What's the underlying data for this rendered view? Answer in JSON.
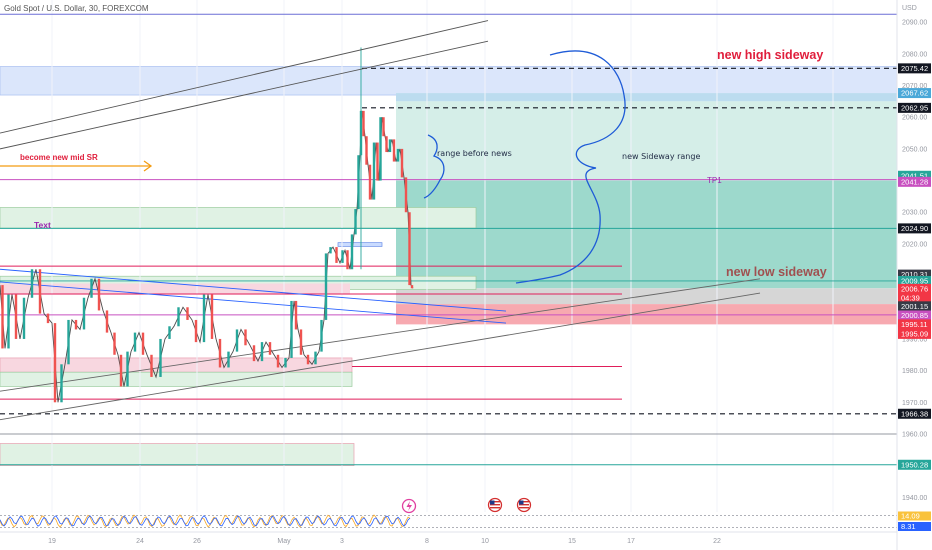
{
  "chart_title": "Gold Spot / U.S. Dollar, 30, FOREXCOM",
  "currency": "USD",
  "chart_data": {
    "type": "line",
    "title": "Gold Spot / U.S. Dollar, 30, FOREXCOM",
    "xlabel": "",
    "ylabel": "",
    "ylim": [
      1936,
      2097
    ],
    "x_tick_labels": [
      "19",
      "24",
      "26",
      "May",
      "3",
      "8",
      "10",
      "15",
      "17",
      "22"
    ],
    "y_ticks": [
      1940,
      1950,
      1960,
      1970,
      1980,
      1990,
      2000,
      2010,
      2020,
      2030,
      2040,
      2050,
      2060,
      2070,
      2080,
      2090
    ],
    "y_tick_labels": [
      "1940.00",
      "1950.00",
      "1960.00",
      "1970.00",
      "1980.00",
      "1990.00",
      "2000.00",
      "2010.00",
      "2020.00",
      "2030.00",
      "2040.00",
      "2050.00",
      "2060.00",
      "2070.00",
      "2080.00",
      "2090.00"
    ],
    "price_series": [
      {
        "x": 0,
        "y": 2007
      },
      {
        "x": 5,
        "y": 1987
      },
      {
        "x": 12,
        "y": 2004
      },
      {
        "x": 20,
        "y": 1990
      },
      {
        "x": 28,
        "y": 2003
      },
      {
        "x": 36,
        "y": 2012
      },
      {
        "x": 44,
        "y": 1998
      },
      {
        "x": 52,
        "y": 1995
      },
      {
        "x": 58,
        "y": 1970
      },
      {
        "x": 65,
        "y": 1982
      },
      {
        "x": 72,
        "y": 1996
      },
      {
        "x": 80,
        "y": 1993
      },
      {
        "x": 88,
        "y": 2003
      },
      {
        "x": 95,
        "y": 2009
      },
      {
        "x": 103,
        "y": 1999
      },
      {
        "x": 111,
        "y": 1992
      },
      {
        "x": 118,
        "y": 1985
      },
      {
        "x": 124,
        "y": 1975
      },
      {
        "x": 131,
        "y": 1986
      },
      {
        "x": 139,
        "y": 1992
      },
      {
        "x": 147,
        "y": 1985
      },
      {
        "x": 156,
        "y": 1978
      },
      {
        "x": 165,
        "y": 1990
      },
      {
        "x": 174,
        "y": 1994
      },
      {
        "x": 183,
        "y": 2000
      },
      {
        "x": 192,
        "y": 1996
      },
      {
        "x": 200,
        "y": 1989
      },
      {
        "x": 208,
        "y": 2004
      },
      {
        "x": 216,
        "y": 1990
      },
      {
        "x": 224,
        "y": 1981
      },
      {
        "x": 233,
        "y": 1986
      },
      {
        "x": 241,
        "y": 1993
      },
      {
        "x": 250,
        "y": 1988
      },
      {
        "x": 258,
        "y": 1983
      },
      {
        "x": 266,
        "y": 1989
      },
      {
        "x": 274,
        "y": 1985
      },
      {
        "x": 282,
        "y": 1981
      },
      {
        "x": 289,
        "y": 1984
      },
      {
        "x": 294,
        "y": 2002
      },
      {
        "x": 298,
        "y": 1993
      },
      {
        "x": 304,
        "y": 1985
      },
      {
        "x": 312,
        "y": 1982
      },
      {
        "x": 319,
        "y": 1986
      },
      {
        "x": 324,
        "y": 1996
      },
      {
        "x": 328,
        "y": 2017
      },
      {
        "x": 333,
        "y": 2019
      },
      {
        "x": 340,
        "y": 2014
      },
      {
        "x": 345,
        "y": 2018
      },
      {
        "x": 350,
        "y": 2012
      },
      {
        "x": 354,
        "y": 2023
      },
      {
        "x": 357,
        "y": 2031
      },
      {
        "x": 360,
        "y": 2048
      },
      {
        "x": 362,
        "y": 2062
      },
      {
        "x": 365,
        "y": 2054
      },
      {
        "x": 368,
        "y": 2045
      },
      {
        "x": 372,
        "y": 2034
      },
      {
        "x": 376,
        "y": 2052
      },
      {
        "x": 379,
        "y": 2040
      },
      {
        "x": 382,
        "y": 2060
      },
      {
        "x": 385,
        "y": 2054
      },
      {
        "x": 388,
        "y": 2049
      },
      {
        "x": 392,
        "y": 2053
      },
      {
        "x": 396,
        "y": 2046
      },
      {
        "x": 400,
        "y": 2050
      },
      {
        "x": 404,
        "y": 2041
      },
      {
        "x": 408,
        "y": 2030
      },
      {
        "x": 411,
        "y": 2007
      },
      {
        "x": 413,
        "y": 2006
      }
    ],
    "oscillator_values": [
      14.09,
      8.31
    ]
  },
  "price_labels": [
    {
      "text": "2075.42",
      "price": 2075.42,
      "bg": "#131722"
    },
    {
      "text": "2067.62",
      "price": 2067.62,
      "bg": "#4aa8d8"
    },
    {
      "text": "2062.95",
      "price": 2062.95,
      "bg": "#131722"
    },
    {
      "text": "2041.51",
      "price": 2041.51,
      "bg": "#26a69a"
    },
    {
      "text": "2041.28",
      "price": 2039.6,
      "bg": "#c850c0"
    },
    {
      "text": "2024.90",
      "price": 2024.9,
      "bg": "#131722"
    },
    {
      "text": "2010.31",
      "price": 2010.31,
      "bg": "#363a45"
    },
    {
      "text": "2009.95",
      "price": 2008.3,
      "bg": "#26a69a"
    },
    {
      "text": "2006.76",
      "price": 2005.8,
      "bg": "#f23645"
    },
    {
      "text": "04:39",
      "price": 2003.0,
      "bg": "#f23645"
    },
    {
      "text": "2001.15",
      "price": 2000.3,
      "bg": "#363a45"
    },
    {
      "text": "2000.85",
      "price": 1997.4,
      "bg": "#c850c0"
    },
    {
      "text": "1995.11",
      "price": 1994.6,
      "bg": "#f23645"
    },
    {
      "text": "1995.09",
      "price": 1991.6,
      "bg": "#f23645"
    },
    {
      "text": "1966.38",
      "price": 1966.38,
      "bg": "#131722"
    },
    {
      "text": "1950.28",
      "price": 1950.28,
      "bg": "#26a69a"
    }
  ],
  "oscillator_labels": [
    {
      "text": "14.09",
      "bg": "#f9c23c",
      "fg": "#131722"
    },
    {
      "text": "8.31",
      "bg": "#2962ff",
      "fg": "#ffffff"
    }
  ],
  "annotations": {
    "new_high": "new high sideway",
    "new_low": "new low sideway",
    "mid_sr": "become new mid SR",
    "text_label": "Text",
    "range_before": "range before news",
    "sideway_range": "new Sideway range",
    "tp1": "TP1"
  },
  "colors": {
    "candle_up": "#26a69a",
    "candle_down": "#ef5350",
    "long_profit": "#26a69a",
    "long_loss": "#f23645",
    "magenta": "#c850c0",
    "crimson": "#e01e5a",
    "blue_line": "#2962ff",
    "annotation_red": "#e01e3c",
    "annotation_orange": "#f39c12"
  },
  "icons": [
    "lightning-event-icon",
    "us-flag-event-icon",
    "us-flag-event-icon"
  ]
}
